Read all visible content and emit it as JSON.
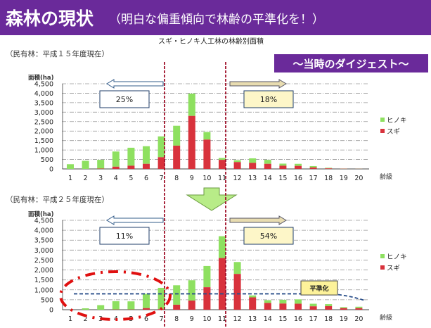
{
  "header": {
    "title": "森林の現状",
    "subtitle": "（明白な偏重傾向で林齢の平準化を！）"
  },
  "digest_label": "～当時のダイジェスト～",
  "colors": {
    "hinoki": "#8ee060",
    "sugi": "#d8323c",
    "title_bg": "#6a2a9a",
    "divider": "#a0102a"
  },
  "chart_data": [
    {
      "type": "bar",
      "stacked": true,
      "title": "スギ・ヒノキ人工林の林齢別面積",
      "subtitle": "（民有林：平成１５年度現在）",
      "ylabel": "面積(ha)",
      "xlabel": "齢級",
      "ylim": [
        0,
        4500
      ],
      "yticks": [
        "0",
        "500",
        "1,000",
        "1,500",
        "2,000",
        "2,500",
        "3,000",
        "3,500",
        "4,000",
        "4,500"
      ],
      "categories": [
        "1",
        "2",
        "3",
        "4",
        "5",
        "6",
        "7",
        "8",
        "9",
        "10",
        "11",
        "12",
        "13",
        "14",
        "15",
        "16",
        "17",
        "18",
        "19",
        "20"
      ],
      "series": [
        {
          "name": "スギ",
          "values": [
            0,
            0,
            20,
            120,
            170,
            270,
            620,
            1230,
            2800,
            1550,
            480,
            360,
            320,
            270,
            170,
            160,
            80,
            30,
            10,
            5
          ]
        },
        {
          "name": "ヒノキ",
          "values": [
            250,
            430,
            460,
            800,
            950,
            930,
            1100,
            1050,
            1180,
            400,
            100,
            100,
            240,
            210,
            110,
            110,
            70,
            30,
            10,
            5
          ]
        }
      ],
      "annotations": {
        "left_pct": "25%",
        "right_pct": "18%"
      },
      "legend": "right"
    },
    {
      "type": "bar",
      "stacked": true,
      "subtitle": "（民有林：平成２５年度現在）",
      "ylabel": "面積(ha)",
      "xlabel": "齢級",
      "ylim": [
        0,
        4500
      ],
      "yticks": [
        "0",
        "500",
        "1,000",
        "1,500",
        "2,000",
        "2,500",
        "3,000",
        "3,500",
        "4,000",
        "4,500"
      ],
      "categories": [
        "1",
        "2",
        "3",
        "4",
        "5",
        "6",
        "7",
        "8",
        "9",
        "10",
        "11",
        "12",
        "13",
        "14",
        "15",
        "16",
        "17",
        "18",
        "19",
        "20"
      ],
      "series": [
        {
          "name": "スギ",
          "values": [
            0,
            0,
            0,
            10,
            10,
            80,
            30,
            250,
            460,
            1130,
            2600,
            1800,
            620,
            340,
            310,
            300,
            170,
            180,
            80,
            80
          ]
        },
        {
          "name": "ヒノキ",
          "values": [
            0,
            70,
            230,
            420,
            410,
            720,
            1070,
            980,
            1020,
            1070,
            1100,
            600,
            100,
            140,
            190,
            220,
            130,
            100,
            50,
            70
          ]
        }
      ],
      "annotations": {
        "left_pct": "11%",
        "right_pct": "54%",
        "leveling_label": "平準化",
        "leveling_level": 800
      },
      "legend": "right"
    }
  ]
}
